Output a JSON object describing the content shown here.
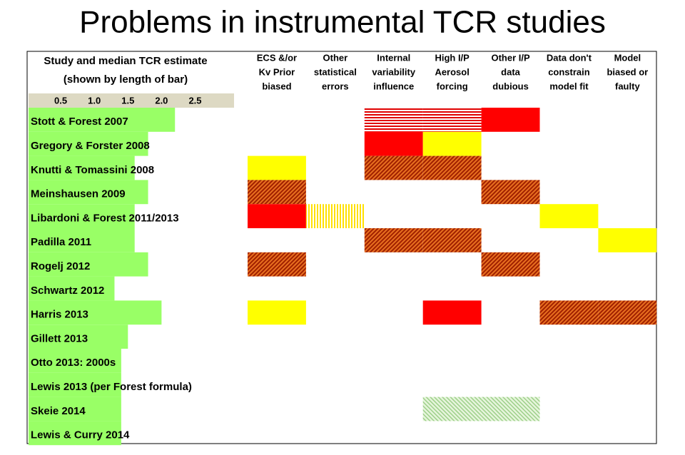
{
  "chart_data": {
    "type": "bar",
    "title": "Problems in instrumental TCR studies",
    "axis_header": [
      "Study and median TCR estimate",
      "(shown by length of bar)"
    ],
    "categories": [
      "Stott & Forest 2007",
      "Gregory & Forster 2008",
      "Knutti & Tomassini 2008",
      "Meinshausen 2009",
      "Libardoni & Forest 2011/2013",
      "Padilla 2011",
      "Rogelj 2012",
      "Schwartz 2012",
      "Harris 2013",
      "Gillett 2013",
      "Otto 2013: 2000s",
      "Lewis 2013 (per Forest formula)",
      "Skeie 2014",
      "Lewis & Curry 2014"
    ],
    "values": [
      2.2,
      1.8,
      1.6,
      1.8,
      1.6,
      1.6,
      1.8,
      1.3,
      2.0,
      1.5,
      1.4,
      1.4,
      1.4,
      1.4
    ],
    "color": "#99ff66",
    "xlim": [
      0,
      3.1
    ],
    "xticks": [
      0.5,
      {
        "value": 1.0,
        "label": "1.0"
      },
      1.5,
      {
        "value": 2.0,
        "label": "2.0"
      },
      2.5
    ],
    "columns": [
      [
        "ECS &/or",
        "Kv Prior",
        "biased"
      ],
      [
        "Other",
        "statistical",
        "errors"
      ],
      [
        "Internal",
        "variability",
        "influence"
      ],
      [
        "High I/P",
        "Aerosol",
        "forcing"
      ],
      [
        "Other I/P",
        "data",
        "dubious"
      ],
      [
        "Data don't",
        "constrain",
        "model fit"
      ],
      [
        "Model",
        "biased or",
        "faulty"
      ]
    ],
    "cells": [
      [
        null,
        null,
        "red-stripes",
        "red-stripes",
        "red",
        null,
        null
      ],
      [
        null,
        null,
        "red",
        "yellow",
        null,
        null,
        null
      ],
      [
        "yellow",
        null,
        "hatch",
        "hatch",
        null,
        null,
        null
      ],
      [
        "hatch",
        null,
        null,
        null,
        "hatch",
        null,
        null
      ],
      [
        "red",
        "yellow-stripes",
        null,
        null,
        null,
        "yellow",
        null
      ],
      [
        null,
        null,
        "hatch",
        "hatch",
        null,
        null,
        "yellow"
      ],
      [
        "hatch",
        null,
        null,
        null,
        "hatch",
        null,
        null
      ],
      [
        null,
        null,
        null,
        null,
        null,
        null,
        null
      ],
      [
        "yellow",
        null,
        null,
        "red",
        null,
        "hatch",
        "hatch"
      ],
      [
        null,
        null,
        null,
        null,
        null,
        null,
        null
      ],
      [
        null,
        null,
        null,
        null,
        null,
        null,
        null
      ],
      [
        null,
        null,
        null,
        null,
        null,
        null,
        null
      ],
      [
        null,
        null,
        null,
        "green-hatch",
        "green-hatch",
        null,
        null
      ],
      [
        null,
        null,
        null,
        null,
        null,
        null,
        null
      ]
    ]
  }
}
